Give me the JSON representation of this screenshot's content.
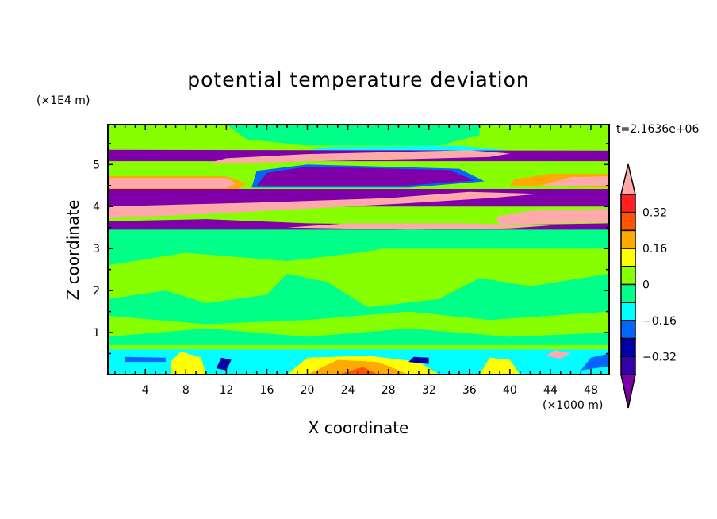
{
  "chart_data": {
    "type": "heatmap",
    "title": "potential temperature deviation",
    "xlabel": "X coordinate",
    "ylabel": "Z coordinate",
    "x_unit": "(×1000 m)",
    "y_unit": "(×1E4 m)",
    "time_label": "t=2.1636e+06",
    "xlim": [
      0.3,
      49.8
    ],
    "ylim": [
      0,
      5.95
    ],
    "xticks": [
      4,
      8,
      12,
      16,
      20,
      24,
      28,
      32,
      36,
      40,
      44,
      48
    ],
    "yticks": [
      1,
      2,
      3,
      4,
      5
    ],
    "colorbar": {
      "levels": [
        -0.4,
        -0.32,
        -0.24,
        -0.16,
        -0.08,
        0,
        0.08,
        0.16,
        0.24,
        0.32,
        0.4
      ],
      "labeled_levels": [
        "0.32",
        "0.16",
        "0",
        "−0.16",
        "−0.32"
      ],
      "labeled_values": [
        0.32,
        0.16,
        0,
        -0.16,
        -0.32
      ],
      "colors": [
        "#7f00aa",
        "#3300aa",
        "#0000aa",
        "#0066ff",
        "#00ffff",
        "#00ff88",
        "#88ff00",
        "#ffff00",
        "#ffaa00",
        "#ff5500",
        "#ff2020",
        "#ffaaaa"
      ],
      "extend": "both"
    },
    "regions": [
      {
        "c": 6,
        "pts": [
          [
            0.3,
            0
          ],
          [
            49.8,
            0
          ],
          [
            49.8,
            5.95
          ],
          [
            0.3,
            5.95
          ]
        ]
      },
      {
        "c": 5,
        "pts": [
          [
            0.3,
            3.0
          ],
          [
            49.8,
            3.0
          ],
          [
            49.8,
            3.45
          ],
          [
            0.3,
            3.45
          ]
        ]
      },
      {
        "c": 5,
        "pts": [
          [
            0.3,
            2.6
          ],
          [
            8,
            2.9
          ],
          [
            18,
            2.7
          ],
          [
            25,
            2.9
          ],
          [
            30,
            3.1
          ],
          [
            40,
            3.2
          ],
          [
            49.8,
            3.3
          ],
          [
            49.8,
            3.0
          ],
          [
            0.3,
            3.0
          ]
        ]
      },
      {
        "c": 5,
        "pts": [
          [
            0.3,
            1.8
          ],
          [
            6,
            2.0
          ],
          [
            10,
            1.7
          ],
          [
            16,
            1.9
          ],
          [
            18,
            2.4
          ],
          [
            22,
            2.2
          ],
          [
            26,
            1.6
          ],
          [
            33,
            1.8
          ],
          [
            37,
            2.3
          ],
          [
            42,
            2.1
          ],
          [
            49.8,
            2.4
          ],
          [
            49.8,
            1.5
          ],
          [
            38,
            1.3
          ],
          [
            30,
            1.5
          ],
          [
            20,
            1.3
          ],
          [
            10,
            1.2
          ],
          [
            0.3,
            1.4
          ]
        ]
      },
      {
        "c": 5,
        "pts": [
          [
            0.3,
            0.7
          ],
          [
            49.8,
            0.7
          ],
          [
            49.8,
            1.0
          ],
          [
            40,
            0.9
          ],
          [
            30,
            1.1
          ],
          [
            20,
            0.9
          ],
          [
            10,
            1.1
          ],
          [
            0.3,
            0.9
          ]
        ]
      },
      {
        "c": 5,
        "pts": [
          [
            12,
            5.95
          ],
          [
            37,
            5.95
          ],
          [
            37,
            5.7
          ],
          [
            33,
            5.45
          ],
          [
            20,
            5.45
          ],
          [
            14,
            5.6
          ]
        ]
      },
      {
        "c": 4,
        "pts": [
          [
            20,
            5.33
          ],
          [
            40,
            5.33
          ],
          [
            35,
            5.45
          ],
          [
            22,
            5.42
          ]
        ]
      },
      {
        "c": 0,
        "pts": [
          [
            0.3,
            5.08
          ],
          [
            49.8,
            5.08
          ],
          [
            49.8,
            5.33
          ],
          [
            0.3,
            5.35
          ]
        ]
      },
      {
        "c": 11,
        "pts": [
          [
            10,
            5.02
          ],
          [
            25,
            5.1
          ],
          [
            38,
            5.18
          ],
          [
            40,
            5.26
          ],
          [
            36,
            5.34
          ],
          [
            20,
            5.25
          ],
          [
            12,
            5.15
          ]
        ]
      },
      {
        "c": 8,
        "pts": [
          [
            0.3,
            4.72
          ],
          [
            12,
            4.72
          ],
          [
            14,
            4.55
          ],
          [
            13,
            4.38
          ],
          [
            0.3,
            4.4
          ]
        ]
      },
      {
        "c": 11,
        "pts": [
          [
            0.3,
            4.44
          ],
          [
            12,
            4.44
          ],
          [
            13,
            4.55
          ],
          [
            12,
            4.68
          ],
          [
            0.3,
            4.68
          ]
        ]
      },
      {
        "c": 3,
        "pts": [
          [
            14.5,
            4.45
          ],
          [
            30,
            4.45
          ],
          [
            37.5,
            4.6
          ],
          [
            35,
            4.9
          ],
          [
            20,
            5.0
          ],
          [
            15,
            4.85
          ]
        ]
      },
      {
        "c": 0,
        "pts": [
          [
            15,
            4.5
          ],
          [
            30,
            4.5
          ],
          [
            36.5,
            4.62
          ],
          [
            34,
            4.87
          ],
          [
            20,
            4.95
          ],
          [
            16,
            4.8
          ]
        ]
      },
      {
        "c": 8,
        "pts": [
          [
            40,
            4.5
          ],
          [
            49.8,
            4.45
          ],
          [
            49.8,
            4.78
          ],
          [
            44,
            4.78
          ],
          [
            40.5,
            4.65
          ]
        ]
      },
      {
        "c": 11,
        "pts": [
          [
            43,
            4.5
          ],
          [
            49.8,
            4.48
          ],
          [
            49.8,
            4.72
          ],
          [
            46,
            4.7
          ]
        ]
      },
      {
        "c": 0,
        "pts": [
          [
            0.3,
            4.0
          ],
          [
            49.8,
            4.0
          ],
          [
            49.8,
            4.42
          ],
          [
            0.3,
            4.42
          ]
        ]
      },
      {
        "c": 11,
        "pts": [
          [
            0.3,
            3.72
          ],
          [
            10,
            3.82
          ],
          [
            20,
            3.95
          ],
          [
            30,
            4.08
          ],
          [
            38,
            4.2
          ],
          [
            43,
            4.3
          ],
          [
            36,
            4.35
          ],
          [
            28,
            4.2
          ],
          [
            16,
            4.1
          ],
          [
            0.3,
            4.0
          ]
        ]
      },
      {
        "c": 11,
        "pts": [
          [
            39,
            3.58
          ],
          [
            49.8,
            3.62
          ],
          [
            49.8,
            3.95
          ],
          [
            42,
            3.9
          ],
          [
            38.5,
            3.75
          ]
        ]
      },
      {
        "c": 0,
        "pts": [
          [
            0.3,
            3.45
          ],
          [
            49.8,
            3.45
          ],
          [
            49.8,
            3.6
          ],
          [
            36,
            3.55
          ],
          [
            20,
            3.6
          ],
          [
            10,
            3.7
          ],
          [
            0.3,
            3.65
          ]
        ]
      },
      {
        "c": 11,
        "pts": [
          [
            18,
            3.5
          ],
          [
            30,
            3.45
          ],
          [
            40,
            3.48
          ],
          [
            44,
            3.55
          ],
          [
            35,
            3.6
          ],
          [
            24,
            3.6
          ]
        ]
      },
      {
        "c": 4,
        "pts": [
          [
            0.3,
            0
          ],
          [
            49.8,
            0
          ],
          [
            49.8,
            0.6
          ],
          [
            0.3,
            0.6
          ]
        ]
      },
      {
        "c": 7,
        "pts": [
          [
            6.5,
            0
          ],
          [
            10,
            0
          ],
          [
            9.5,
            0.4
          ],
          [
            7.5,
            0.55
          ],
          [
            6.5,
            0.3
          ]
        ]
      },
      {
        "c": 7,
        "pts": [
          [
            18,
            0
          ],
          [
            33,
            0
          ],
          [
            31,
            0.3
          ],
          [
            26,
            0.45
          ],
          [
            20,
            0.4
          ]
        ]
      },
      {
        "c": 8,
        "pts": [
          [
            20,
            0
          ],
          [
            30,
            0
          ],
          [
            27,
            0.3
          ],
          [
            23,
            0.35
          ]
        ]
      },
      {
        "c": 9,
        "pts": [
          [
            23,
            0
          ],
          [
            27,
            0
          ],
          [
            25.5,
            0.18
          ]
        ]
      },
      {
        "c": 7,
        "pts": [
          [
            37,
            0
          ],
          [
            41,
            0
          ],
          [
            40,
            0.35
          ],
          [
            38,
            0.4
          ]
        ]
      },
      {
        "c": 11,
        "pts": [
          [
            43.5,
            0.45
          ],
          [
            45,
            0.38
          ],
          [
            46,
            0.5
          ],
          [
            44.5,
            0.58
          ]
        ]
      },
      {
        "c": 2,
        "pts": [
          [
            11,
            0.15
          ],
          [
            12,
            0.1
          ],
          [
            12.5,
            0.35
          ],
          [
            11.5,
            0.4
          ]
        ]
      },
      {
        "c": 2,
        "pts": [
          [
            30,
            0.3
          ],
          [
            32,
            0.25
          ],
          [
            32,
            0.4
          ],
          [
            30.5,
            0.42
          ]
        ]
      },
      {
        "c": 3,
        "pts": [
          [
            2,
            0.3
          ],
          [
            6,
            0.3
          ],
          [
            6,
            0.4
          ],
          [
            2,
            0.42
          ]
        ]
      },
      {
        "c": 3,
        "pts": [
          [
            47,
            0.1
          ],
          [
            49.8,
            0.2
          ],
          [
            49.8,
            0.5
          ],
          [
            48,
            0.4
          ]
        ]
      }
    ]
  }
}
